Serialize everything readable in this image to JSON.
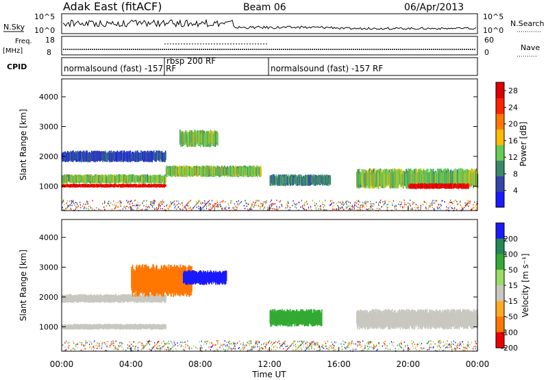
{
  "header": {
    "station": "Adak East (fitACF)",
    "beam": "Beam 06",
    "date": "06/Apr/2013"
  },
  "top_panels": {
    "nsky_label": "N.Sky",
    "nsearch_label": "N.Search",
    "log_ticks": [
      "10^5",
      "10^0"
    ],
    "freq_label": "Freq.",
    "freq_unit": "[MHz]",
    "freq_ticks": [
      "18",
      "8"
    ],
    "nave_label": "Nave",
    "nave_ticks": [
      "60",
      "0"
    ],
    "cpid_label": "CPID",
    "cpid_segments": [
      {
        "label": "normalsound (fast) -157 RF",
        "start_hour": 0,
        "end_hour": 6
      },
      {
        "label": "rbsp 200 RF",
        "start_hour": 6,
        "end_hour": 12
      },
      {
        "label": "normalsound (fast) -157 RF",
        "start_hour": 12,
        "end_hour": 24
      }
    ]
  },
  "chart_data": [
    {
      "type": "heatmap",
      "quantity": "Power",
      "ylabel": "Slant Range [km]",
      "xlabel": "Time UT",
      "x_ticks": [
        "00:00",
        "04:00",
        "08:00",
        "12:00",
        "16:00",
        "20:00",
        "00:00"
      ],
      "xlim_hours": [
        0,
        24
      ],
      "y_ticks": [
        1000,
        2000,
        3000,
        4000
      ],
      "ylim": [
        180,
        4600
      ],
      "colorbar": {
        "label": "Power [dB]",
        "ticks": [
          4,
          8,
          12,
          16,
          20,
          24,
          28
        ],
        "range": [
          0,
          30
        ],
        "colors": [
          "#1a1aff",
          "#3344aa",
          "#3a8a6a",
          "#66cc55",
          "#ffbb00",
          "#ff7700",
          "#ff2200",
          "#dd0000"
        ]
      },
      "echo_bands": [
        {
          "t_start": 0.0,
          "t_end": 6.0,
          "range_start": 950,
          "range_end": 1080,
          "level": 28
        },
        {
          "t_start": 0.0,
          "t_end": 6.0,
          "range_start": 1080,
          "range_end": 1400,
          "level": 12
        },
        {
          "t_start": 0.0,
          "t_end": 6.0,
          "range_start": 1800,
          "range_end": 2200,
          "level": 6
        },
        {
          "t_start": 6.0,
          "t_end": 11.5,
          "range_start": 1300,
          "range_end": 1700,
          "level": 14
        },
        {
          "t_start": 6.8,
          "t_end": 9.0,
          "range_start": 2300,
          "range_end": 2900,
          "level": 12
        },
        {
          "t_start": 12.0,
          "t_end": 15.5,
          "range_start": 1000,
          "range_end": 1400,
          "level": 8
        },
        {
          "t_start": 17.0,
          "t_end": 24.0,
          "range_start": 900,
          "range_end": 1600,
          "level": 14
        },
        {
          "t_start": 20.0,
          "t_end": 23.5,
          "range_start": 900,
          "range_end": 1100,
          "level": 28
        }
      ]
    },
    {
      "type": "heatmap",
      "quantity": "Velocity",
      "ylabel": "Slant Range [km]",
      "xlabel": "Time UT",
      "x_ticks": [
        "00:00",
        "04:00",
        "08:00",
        "12:00",
        "16:00",
        "20:00",
        "00:00"
      ],
      "xlim_hours": [
        0,
        24
      ],
      "y_ticks": [
        1000,
        2000,
        3000,
        4000
      ],
      "ylim": [
        180,
        4600
      ],
      "colorbar": {
        "label": "Velocity [m s⁻¹]",
        "ticks": [
          200,
          100,
          50,
          15,
          -15,
          -50,
          -100,
          -200
        ],
        "colors": [
          "#1a1aff",
          "#228855",
          "#33aa33",
          "#99dd66",
          "#bbbbbb",
          "#ffaa22",
          "#ff7700",
          "#ee0000"
        ]
      },
      "echo_bands": [
        {
          "t_start": 0.0,
          "t_end": 6.0,
          "range_start": 900,
          "range_end": 1100,
          "velocity": 0
        },
        {
          "t_start": 0.0,
          "t_end": 6.0,
          "range_start": 1800,
          "range_end": 2100,
          "velocity": 0
        },
        {
          "t_start": 4.0,
          "t_end": 7.5,
          "range_start": 2000,
          "range_end": 3100,
          "velocity": -60
        },
        {
          "t_start": 7.0,
          "t_end": 9.5,
          "range_start": 2400,
          "range_end": 2900,
          "velocity": 220
        },
        {
          "t_start": 12.0,
          "t_end": 15.0,
          "range_start": 1000,
          "range_end": 1600,
          "velocity": 50
        },
        {
          "t_start": 17.0,
          "t_end": 24.0,
          "range_start": 900,
          "range_end": 1600,
          "velocity": 0
        }
      ]
    }
  ],
  "colors": {
    "axis": "#000000",
    "grey_echo": "#c8c8c0"
  }
}
